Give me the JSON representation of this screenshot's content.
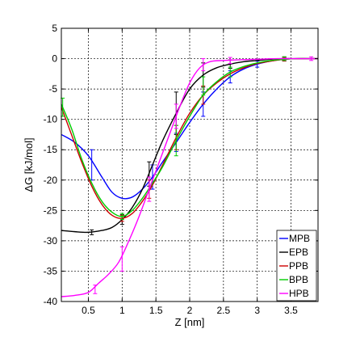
{
  "chart_data": {
    "type": "line",
    "title": "",
    "xlabel": "Z [nm]",
    "ylabel": "ΔG [kJ/mol]",
    "xlim": [
      0.1,
      3.9
    ],
    "ylim": [
      -40,
      5
    ],
    "xticks": [
      0.5,
      1,
      1.5,
      2,
      2.5,
      3,
      3.5
    ],
    "xtick_labels": [
      "0.5",
      "1",
      "1.5",
      "2",
      "2.5",
      "3",
      "3.5"
    ],
    "yticks": [
      -40,
      -35,
      -30,
      -25,
      -20,
      -15,
      -10,
      -5,
      0,
      5
    ],
    "ytick_labels": [
      "-40",
      "-35",
      "-30",
      "-25",
      "-20",
      "-15",
      "-10",
      "-5",
      "0",
      "5"
    ],
    "grid": true,
    "legend_position": "bottom-right",
    "series": [
      {
        "name": "MPB",
        "color": "#0000ff",
        "x": [
          0.1,
          0.3,
          0.5,
          0.7,
          0.85,
          1.0,
          1.15,
          1.3,
          1.45,
          1.6,
          1.8,
          2.0,
          2.2,
          2.4,
          2.6,
          2.8,
          3.0,
          3.2,
          3.4,
          3.6,
          3.8,
          3.9
        ],
        "y": [
          -12.5,
          -13.8,
          -16.0,
          -19.5,
          -22.0,
          -23.0,
          -22.8,
          -21.5,
          -19.5,
          -17.0,
          -13.8,
          -10.5,
          -7.5,
          -5.0,
          -3.0,
          -1.7,
          -0.9,
          -0.4,
          -0.1,
          0.0,
          0.0,
          0.0
        ],
        "errors": [
          {
            "x": 0.55,
            "y": -17.5,
            "err": 2.5
          },
          {
            "x": 1.45,
            "y": -19.5,
            "err": 2.0
          },
          {
            "x": 1.8,
            "y": -13.8,
            "err": 1.5
          },
          {
            "x": 2.2,
            "y": -7.5,
            "err": 2.0
          },
          {
            "x": 2.6,
            "y": -3.0,
            "err": 1.0
          },
          {
            "x": 3.0,
            "y": -0.9,
            "err": 0.5
          },
          {
            "x": 3.4,
            "y": -0.1,
            "err": 0.3
          }
        ]
      },
      {
        "name": "EPB",
        "color": "#000000",
        "x": [
          0.1,
          0.3,
          0.5,
          0.7,
          0.85,
          1.0,
          1.15,
          1.3,
          1.45,
          1.6,
          1.8,
          2.0,
          2.2,
          2.4,
          2.6,
          2.8,
          3.0,
          3.2,
          3.4,
          3.6,
          3.8,
          3.9
        ],
        "y": [
          -28.3,
          -28.5,
          -28.6,
          -28.3,
          -27.8,
          -26.5,
          -24.5,
          -21.5,
          -17.5,
          -13.5,
          -9.0,
          -5.0,
          -2.7,
          -1.5,
          -0.9,
          -0.5,
          -0.3,
          -0.1,
          0.0,
          0.0,
          0.0,
          0.0
        ],
        "errors": [
          {
            "x": 0.55,
            "y": -28.6,
            "err": 0.4
          },
          {
            "x": 1.0,
            "y": -26.5,
            "err": 0.8
          },
          {
            "x": 1.4,
            "y": -19.0,
            "err": 2.0
          },
          {
            "x": 1.8,
            "y": -9.0,
            "err": 3.5
          },
          {
            "x": 2.2,
            "y": -2.7,
            "err": 2.0
          },
          {
            "x": 2.6,
            "y": -0.9,
            "err": 0.7
          },
          {
            "x": 3.4,
            "y": 0.0,
            "err": 0.3
          }
        ]
      },
      {
        "name": "PPB",
        "color": "#cc0000",
        "x": [
          0.1,
          0.25,
          0.4,
          0.55,
          0.7,
          0.85,
          1.0,
          1.15,
          1.3,
          1.45,
          1.6,
          1.8,
          2.0,
          2.2,
          2.4,
          2.6,
          2.8,
          3.0,
          3.2,
          3.4,
          3.6,
          3.8,
          3.9
        ],
        "y": [
          -8.0,
          -12.5,
          -17.0,
          -21.0,
          -24.0,
          -25.8,
          -26.3,
          -25.5,
          -23.5,
          -20.8,
          -17.5,
          -13.0,
          -9.0,
          -6.0,
          -4.0,
          -2.5,
          -1.5,
          -0.8,
          -0.4,
          -0.1,
          0.0,
          0.0,
          0.0
        ],
        "errors": [
          {
            "x": 1.0,
            "y": -26.3,
            "err": 0.5
          },
          {
            "x": 1.4,
            "y": -21.5,
            "err": 1.5
          },
          {
            "x": 1.8,
            "y": -13.0,
            "err": 2.0
          },
          {
            "x": 2.2,
            "y": -6.0,
            "err": 1.5
          },
          {
            "x": 3.4,
            "y": -0.1,
            "err": 0.3
          }
        ]
      },
      {
        "name": "BPB",
        "color": "#00cc00",
        "x": [
          0.1,
          0.25,
          0.4,
          0.55,
          0.7,
          0.85,
          1.0,
          1.15,
          1.3,
          1.45,
          1.6,
          1.8,
          2.0,
          2.2,
          2.4,
          2.6,
          2.8,
          3.0,
          3.2,
          3.4,
          3.6,
          3.8,
          3.9
        ],
        "y": [
          -7.5,
          -11.5,
          -16.5,
          -20.5,
          -23.5,
          -25.3,
          -26.0,
          -25.0,
          -23.0,
          -20.5,
          -17.8,
          -13.5,
          -9.5,
          -6.0,
          -3.8,
          -2.2,
          -1.3,
          -0.7,
          -0.3,
          -0.1,
          0.0,
          0.0,
          0.0
        ],
        "errors": [
          {
            "x": 0.12,
            "y": -8.0,
            "err": 1.5
          },
          {
            "x": 1.0,
            "y": -26.0,
            "err": 0.5
          },
          {
            "x": 1.8,
            "y": -13.5,
            "err": 2.5
          },
          {
            "x": 2.2,
            "y": -4.5,
            "err": 1.5
          },
          {
            "x": 2.6,
            "y": -2.2,
            "err": 0.8
          },
          {
            "x": 3.4,
            "y": 0.0,
            "err": 0.3
          }
        ]
      },
      {
        "name": "HPB",
        "color": "#ff00ff",
        "x": [
          0.1,
          0.3,
          0.5,
          0.65,
          0.8,
          0.95,
          1.1,
          1.25,
          1.4,
          1.55,
          1.7,
          1.85,
          2.0,
          2.15,
          2.3,
          2.5,
          2.7,
          3.0,
          3.3,
          3.6,
          3.8,
          3.9
        ],
        "y": [
          -39.2,
          -39.0,
          -38.5,
          -37.0,
          -35.5,
          -33.5,
          -30.0,
          -26.0,
          -21.5,
          -17.0,
          -12.5,
          -8.0,
          -4.0,
          -1.5,
          -0.5,
          -0.3,
          -0.2,
          -0.1,
          0.0,
          0.0,
          0.0,
          0.0
        ],
        "errors": [
          {
            "x": 0.6,
            "y": -38.0,
            "err": 0.7
          },
          {
            "x": 1.0,
            "y": -33.0,
            "err": 2.0
          },
          {
            "x": 1.4,
            "y": -21.5,
            "err": 2.0
          },
          {
            "x": 1.8,
            "y": -9.5,
            "err": 2.0
          },
          {
            "x": 2.2,
            "y": -1.0,
            "err": 1.0
          },
          {
            "x": 2.6,
            "y": -0.3,
            "err": 0.5
          },
          {
            "x": 3.8,
            "y": 0.0,
            "err": 0.3
          }
        ]
      }
    ]
  }
}
